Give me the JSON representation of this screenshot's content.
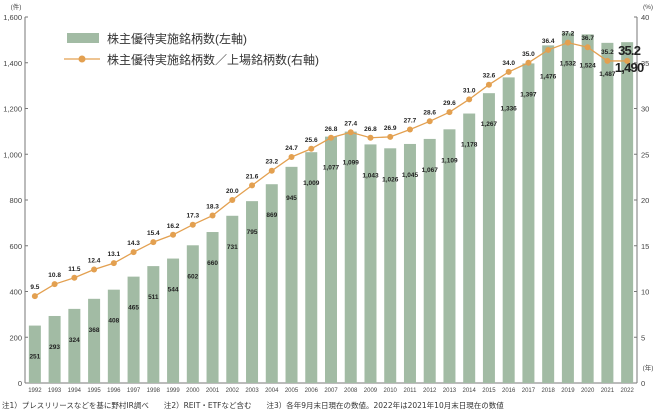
{
  "chart_data": {
    "type": "bar+line",
    "left_unit": "(件)",
    "right_unit": "(%)",
    "x_unit": "(年)",
    "left_ylim": [
      0,
      1600
    ],
    "right_ylim": [
      0,
      40
    ],
    "left_ticks": [
      "0",
      "200",
      "400",
      "600",
      "800",
      "1,000",
      "1,200",
      "1,400",
      "1,600"
    ],
    "right_ticks": [
      "0",
      "5",
      "10",
      "15",
      "20",
      "25",
      "30",
      "35",
      "40"
    ],
    "categories": [
      "1992",
      "1993",
      "1994",
      "1995",
      "1996",
      "1997",
      "1998",
      "1999",
      "2000",
      "2001",
      "2002",
      "2003",
      "2004",
      "2005",
      "2006",
      "2007",
      "2008",
      "2009",
      "2010",
      "2011",
      "2012",
      "2013",
      "2014",
      "2015",
      "2016",
      "2017",
      "2018",
      "2019",
      "2020",
      "2021",
      "2022"
    ],
    "series": [
      {
        "name": "株主優待実施銘柄数(左軸)",
        "type": "bar",
        "axis": "left",
        "color": "#a2bba4",
        "values": [
          251,
          293,
          324,
          368,
          408,
          465,
          511,
          544,
          602,
          660,
          731,
          795,
          869,
          945,
          1009,
          1077,
          1099,
          1043,
          1026,
          1045,
          1067,
          1109,
          1178,
          1267,
          1336,
          1397,
          1476,
          1532,
          1524,
          1487,
          1490
        ],
        "labels": [
          "251",
          "293",
          "324",
          "368",
          "408",
          "465",
          "511",
          "544",
          "602",
          "660",
          "731",
          "795",
          "869",
          "945",
          "1,009",
          "1,077",
          "1,099",
          "1,043",
          "1,026",
          "1,045",
          "1,067",
          "1,109",
          "1,178",
          "1,267",
          "1,336",
          "1,397",
          "1,476",
          "1,532",
          "1,524",
          "1,487",
          "1,490"
        ]
      },
      {
        "name": "株主優待実施銘柄数／上場銘柄数(右軸)",
        "type": "line",
        "axis": "right",
        "color": "#e3a050",
        "values": [
          9.5,
          10.8,
          11.5,
          12.4,
          13.1,
          14.3,
          15.4,
          16.2,
          17.3,
          18.3,
          20.0,
          21.6,
          23.2,
          24.7,
          25.6,
          26.8,
          27.4,
          26.8,
          26.9,
          27.7,
          28.6,
          29.6,
          31.0,
          32.6,
          34.0,
          35.0,
          36.4,
          37.2,
          36.7,
          35.2,
          35.2
        ],
        "labels": [
          "9.5",
          "10.8",
          "11.5",
          "12.4",
          "13.1",
          "14.3",
          "15.4",
          "16.2",
          "17.3",
          "18.3",
          "20.0",
          "21.6",
          "23.2",
          "24.7",
          "25.6",
          "26.8",
          "27.4",
          "26.8",
          "26.9",
          "27.7",
          "28.6",
          "29.6",
          "31.0",
          "32.6",
          "34.0",
          "35.0",
          "36.4",
          "37.2",
          "36.7",
          "35.2",
          "35.2"
        ]
      }
    ],
    "legend_placement": "top-left"
  },
  "footnote": "注1）プレスリリースなどを基に野村IR調べ　　注2）REIT・ETFなど含む　　注3）各年9月末日現在の数値。2022年は2021年10月末日現在の数値"
}
